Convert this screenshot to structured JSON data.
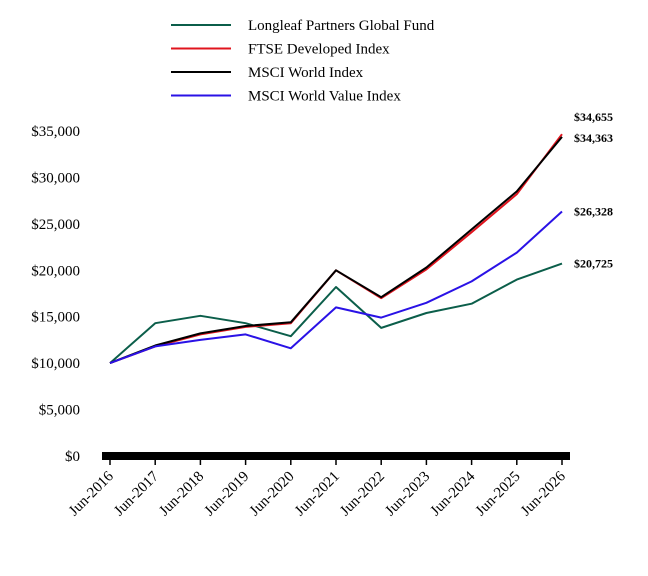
{
  "chart_data": {
    "type": "line",
    "x": [
      "Jun-2016",
      "Jun-2017",
      "Jun-2018",
      "Jun-2019",
      "Jun-2020",
      "Jun-2021",
      "Jun-2022",
      "Jun-2023",
      "Jun-2024",
      "Jun-2025",
      "Jun-2026"
    ],
    "ylim": [
      0,
      35000
    ],
    "yticks": [
      0,
      5000,
      10000,
      15000,
      20000,
      25000,
      30000,
      35000
    ],
    "ytick_labels": [
      "$0",
      "$5,000",
      "$10,000",
      "$15,000",
      "$20,000",
      "$25,000",
      "$30,000",
      "$35,000"
    ],
    "grid": false,
    "legend_position": "top",
    "series": [
      {
        "name": "Longleaf Partners Global Fund",
        "color": "#0b5e4a",
        "values": [
          10000,
          14300,
          15100,
          14300,
          12900,
          18200,
          13800,
          15400,
          16400,
          19000,
          20725
        ],
        "end_label": "$20,725"
      },
      {
        "name": "FTSE Developed Index",
        "color": "#e0141e",
        "values": [
          10000,
          11800,
          13100,
          13900,
          14300,
          20000,
          17000,
          20100,
          24100,
          28200,
          34655
        ],
        "end_label": "$34,655"
      },
      {
        "name": "MSCI World Index",
        "color": "#000000",
        "values": [
          10000,
          11900,
          13200,
          14000,
          14400,
          20000,
          17100,
          20300,
          24400,
          28500,
          34363
        ],
        "end_label": "$34,363"
      },
      {
        "name": "MSCI World Value Index",
        "color": "#2a12e6",
        "values": [
          10000,
          11800,
          12500,
          13100,
          11600,
          16000,
          14900,
          16500,
          18800,
          21900,
          26328
        ],
        "end_label": "$26,328"
      }
    ]
  }
}
